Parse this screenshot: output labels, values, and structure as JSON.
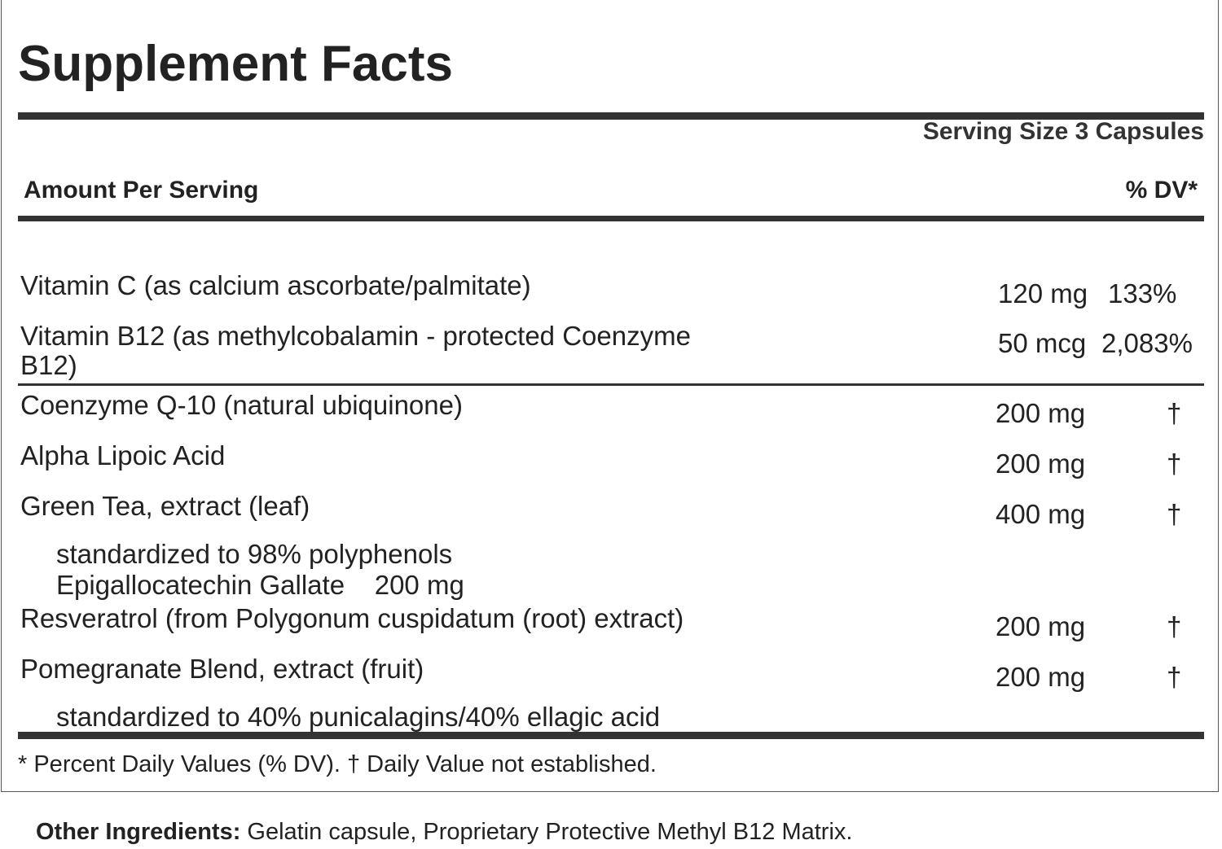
{
  "title": "Supplement Facts",
  "serving_size": "Serving Size 3 Capsules",
  "header": {
    "amount_per_serving": "Amount Per Serving",
    "dv": "% DV*"
  },
  "rows": [
    {
      "name": "Vitamin C (as calcium ascorbate/palmitate)",
      "amount": "120 mg",
      "dv": "133%"
    },
    {
      "name": "Vitamin B12 (as methylcobalamin - protected Coenzyme",
      "name_cont": "B12)",
      "amount": "50 mcg",
      "dv": "2,083%"
    },
    {
      "name": "Coenzyme Q-10 (natural ubiquinone)",
      "amount": "200 mg",
      "dv": "†"
    },
    {
      "name": "Alpha Lipoic Acid",
      "amount": "200 mg",
      "dv": "†"
    },
    {
      "name": "Green Tea, extract (leaf)",
      "amount": "400 mg",
      "dv": "†",
      "sub1": "standardized to 98% polyphenols",
      "sub2": "Epigallocatechin Gallate    200 mg"
    },
    {
      "name": "Resveratrol (from Polygonum cuspidatum (root) extract)",
      "amount": "200 mg",
      "dv": "†"
    },
    {
      "name": "Pomegranate Blend, extract (fruit)",
      "amount": "200 mg",
      "dv": "†",
      "sub1": "standardized to 40% punicalagins/40% ellagic acid"
    }
  ],
  "footnote": "* Percent Daily Values (% DV). † Daily Value not established.",
  "other_ingredients": {
    "label": "Other Ingredients:",
    "text": " Gelatin capsule, Proprietary Protective Methyl B12 Matrix."
  }
}
